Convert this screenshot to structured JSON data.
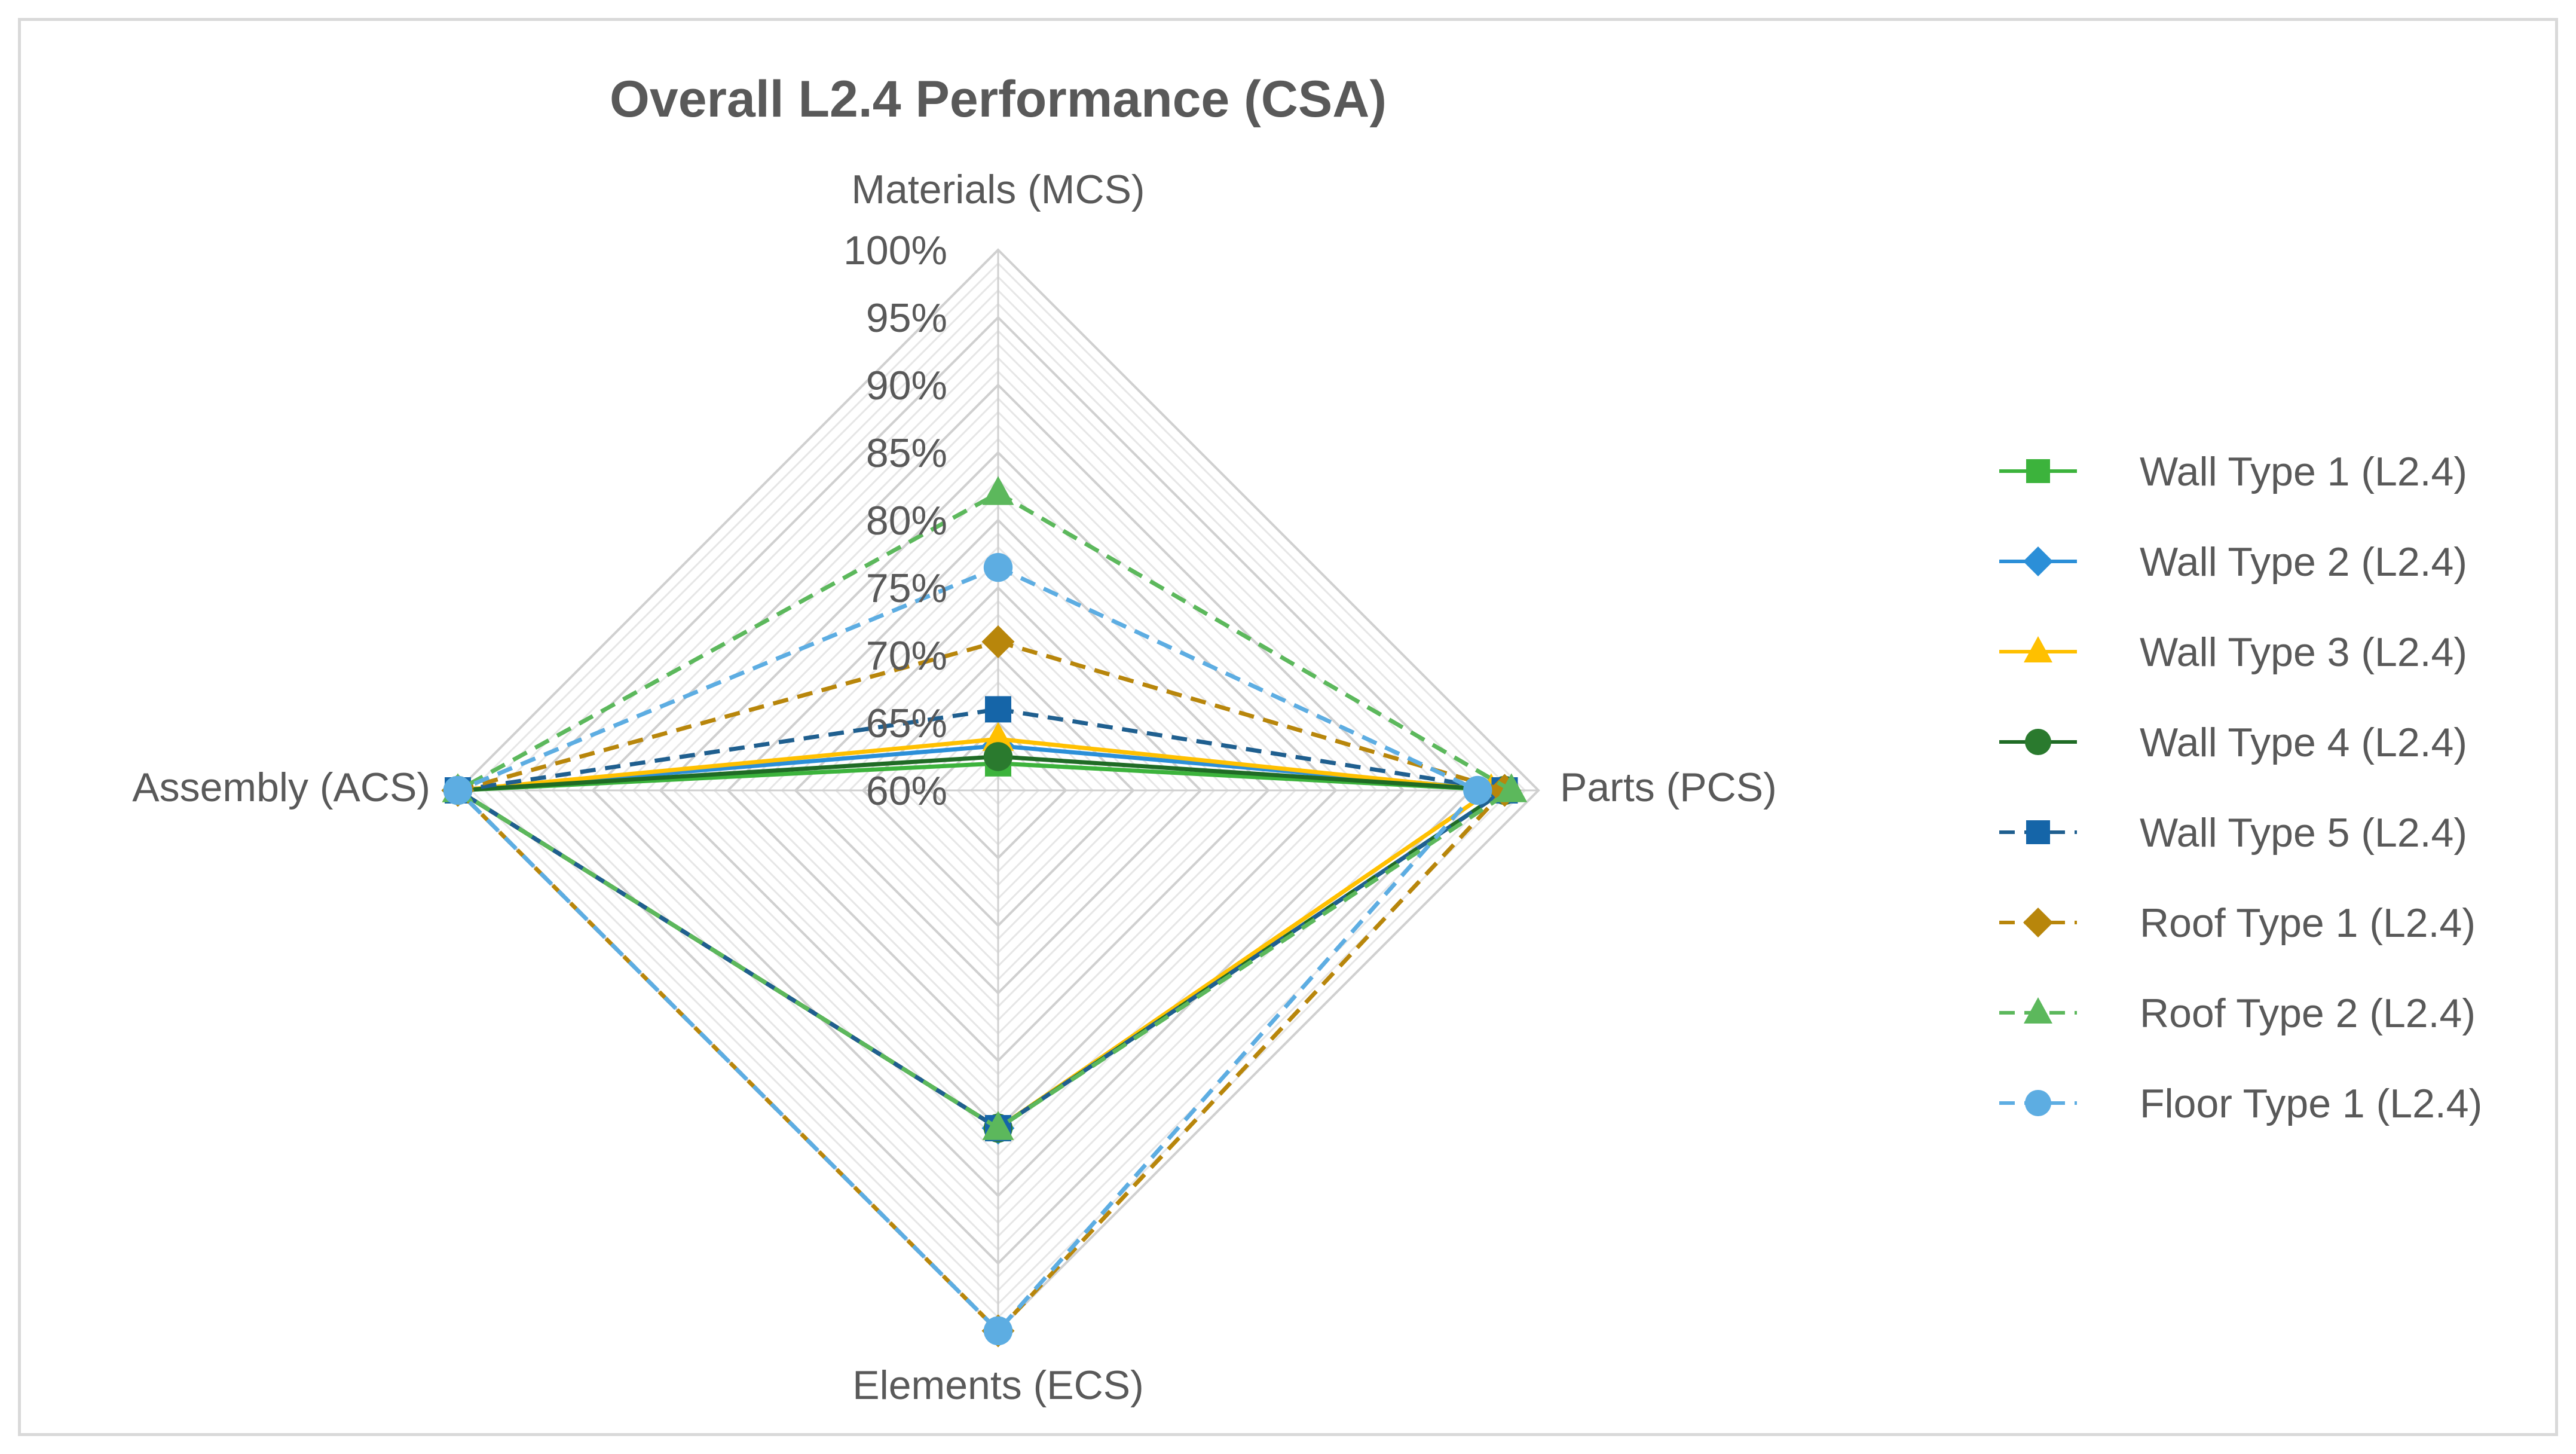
{
  "chart_data": {
    "type": "radar",
    "title": "Overall L2.4 Performance (CSA)",
    "axes": [
      "Materials (MCS)",
      "Parts (PCS)",
      "Elements (ECS)",
      "Assembly (ACS)"
    ],
    "r_range": [
      0.6,
      1.0
    ],
    "tick_values": [
      0.6,
      0.65,
      0.7,
      0.75,
      0.8,
      0.85,
      0.9,
      0.95,
      1.0
    ],
    "tick_labels": [
      "60%",
      "65%",
      "70%",
      "75%",
      "80%",
      "85%",
      "90%",
      "95%",
      "100%"
    ],
    "minor_grid_step": 0.01,
    "legend_position": "right",
    "series": [
      {
        "name": "Wall Type 1 (L2.4)",
        "values": [
          0.62,
          0.975,
          0.85,
          1.0
        ],
        "color": "#3cb33c",
        "dash": "solid",
        "marker": "square",
        "markerColor": "#3cb33c"
      },
      {
        "name": "Wall Type 2 (L2.4)",
        "values": [
          0.633,
          0.975,
          0.85,
          1.0
        ],
        "color": "#2b8fd8",
        "dash": "solid",
        "marker": "diamond",
        "markerColor": "#2b8fd8"
      },
      {
        "name": "Wall Type 3 (L2.4)",
        "values": [
          0.638,
          0.965,
          0.85,
          1.0
        ],
        "color": "#ffc000",
        "dash": "solid",
        "marker": "triangle",
        "markerColor": "#ffc000"
      },
      {
        "name": "Wall Type 4 (L2.4)",
        "values": [
          0.625,
          0.975,
          0.85,
          1.0
        ],
        "color": "#1f6b25",
        "dash": "solid",
        "marker": "circle",
        "markerColor": "#2a7a2e"
      },
      {
        "name": "Wall Type 5 (L2.4)",
        "values": [
          0.66,
          0.975,
          0.85,
          1.0
        ],
        "color": "#1f5f8f",
        "dash": "dashed",
        "marker": "square",
        "markerColor": "#1565a8"
      },
      {
        "name": "Roof Type 1 (L2.4)",
        "values": [
          0.71,
          0.975,
          1.0,
          1.0
        ],
        "color": "#b8860b",
        "dash": "dashed",
        "marker": "diamond",
        "markerColor": "#b8860b"
      },
      {
        "name": "Roof Type 2 (L2.4)",
        "values": [
          0.82,
          0.98,
          0.85,
          1.0
        ],
        "color": "#5cb85c",
        "dash": "dashed",
        "marker": "triangle",
        "markerColor": "#5cb85c"
      },
      {
        "name": "Floor Type 1 (L2.4)",
        "values": [
          0.765,
          0.955,
          1.0,
          1.0
        ],
        "color": "#5dade2",
        "dash": "dashed",
        "marker": "circle",
        "markerColor": "#5dade2"
      }
    ]
  }
}
